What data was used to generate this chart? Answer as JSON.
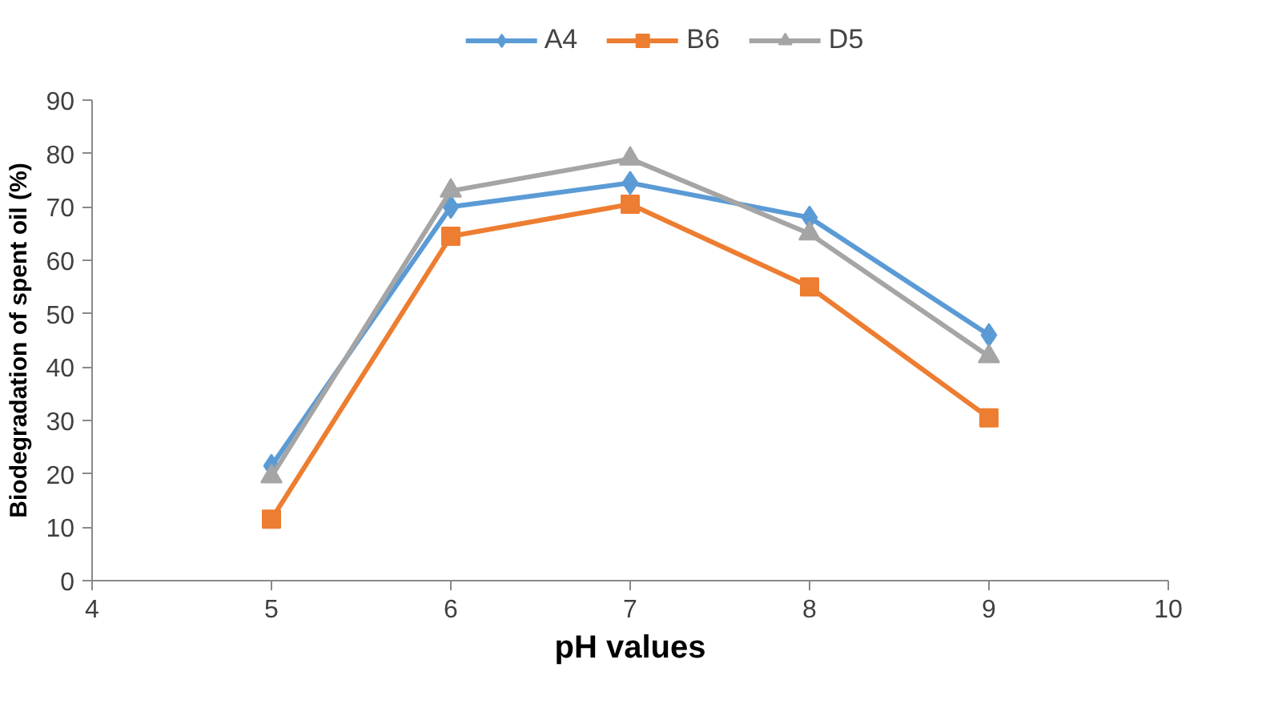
{
  "chart_data": {
    "type": "line",
    "xlabel": "pH values",
    "ylabel": "Biodegradation of spent oil (%)",
    "x": [
      5,
      6,
      7,
      8,
      9
    ],
    "series": [
      {
        "name": "A4",
        "color": "#5b9bd5",
        "marker": "diamond",
        "values": [
          21.5,
          70,
          74.5,
          68,
          46
        ]
      },
      {
        "name": "B6",
        "color": "#ed7d31",
        "marker": "square",
        "values": [
          11.5,
          64.5,
          70.5,
          55,
          30.5
        ]
      },
      {
        "name": "D5",
        "color": "#a5a5a5",
        "marker": "triangle",
        "values": [
          19.5,
          73,
          79,
          65,
          42
        ]
      }
    ],
    "xlim": [
      4,
      10
    ],
    "xticks": [
      4,
      5,
      6,
      7,
      8,
      9,
      10
    ],
    "ylim": [
      0,
      90
    ],
    "yticks": [
      0,
      10,
      20,
      30,
      40,
      50,
      60,
      70,
      80,
      90
    ],
    "grid": false,
    "legend": "top",
    "line_style": "solid"
  }
}
